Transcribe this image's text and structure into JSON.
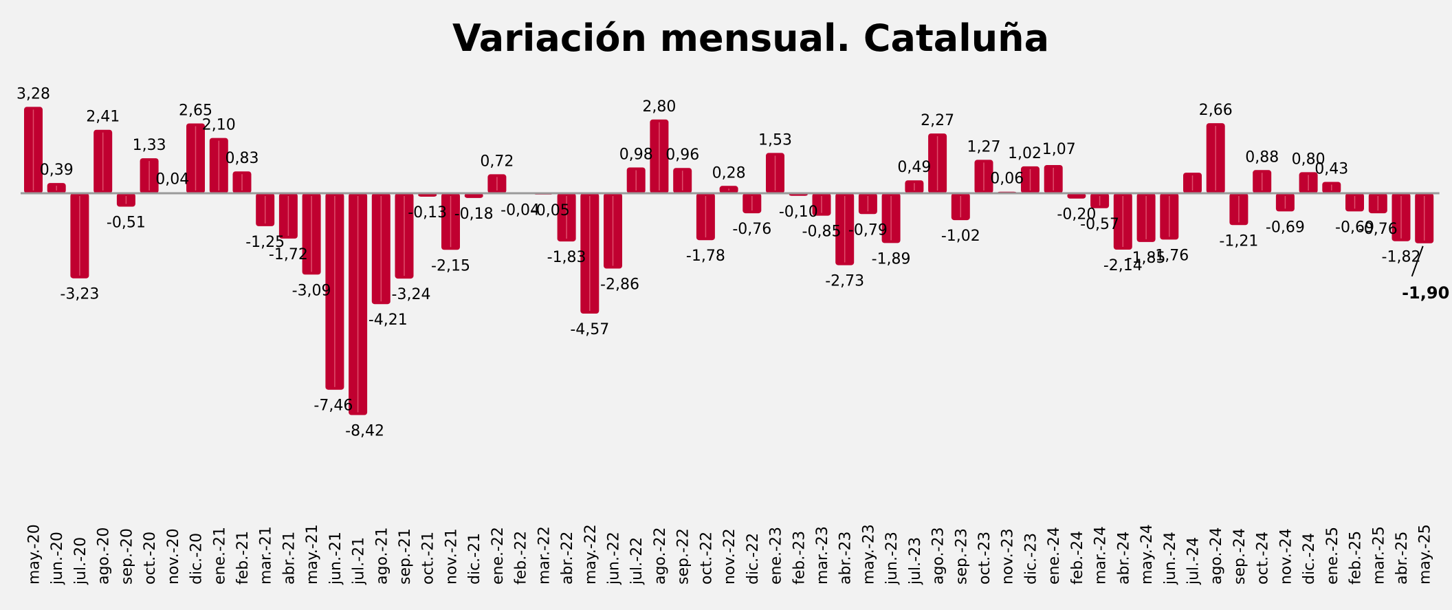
{
  "chart_data": {
    "type": "bar",
    "title": "Variación mensual. Cataluña",
    "xlabel": "",
    "ylabel": "",
    "ylim": [
      -9.5,
      4.0
    ],
    "grid": false,
    "legend": "none",
    "colors": {
      "bar": "#c00030",
      "bar_highlight": "#e6607a",
      "zero_line": "#9a9a9a",
      "background": "#f2f2f2"
    },
    "categories": [
      "may.-20",
      "jun.-20",
      "jul.-20",
      "ago.-20",
      "sep.-20",
      "oct.-20",
      "nov.-20",
      "dic.-20",
      "ene.-21",
      "feb.-21",
      "mar.-21",
      "abr.-21",
      "may.-21",
      "jun.-21",
      "jul.-21",
      "ago.-21",
      "sep.-21",
      "oct.-21",
      "nov.-21",
      "dic.-21",
      "ene.-22",
      "feb.-22",
      "mar.-22",
      "abr.-22",
      "may.-22",
      "jun.-22",
      "jul.-22",
      "ago.-22",
      "sep.-22",
      "oct.-22",
      "nov.-22",
      "dic.-22",
      "ene.-23",
      "feb.-23",
      "mar.-23",
      "abr.-23",
      "may.-23",
      "jun.-23",
      "jul.-23",
      "ago.-23",
      "sep.-23",
      "oct.-23",
      "nov.-23",
      "dic.-23",
      "ene.-24",
      "feb.-24",
      "mar.-24",
      "abr.-24",
      "may.-24",
      "jun.-24",
      "jul.-24",
      "ago.-24",
      "sep.-24",
      "oct.-24",
      "nov.-24",
      "dic.-24",
      "ene.-25",
      "feb.-25",
      "mar.-25",
      "abr.-25",
      "may.-25"
    ],
    "values": [
      3.28,
      0.39,
      -3.23,
      2.41,
      -0.51,
      1.33,
      0.04,
      2.65,
      2.1,
      0.83,
      -1.25,
      -1.72,
      -3.09,
      -7.46,
      -8.42,
      -4.21,
      -3.24,
      -0.13,
      -2.15,
      -0.18,
      0.72,
      -0.04,
      -0.05,
      -1.83,
      -4.57,
      -2.86,
      0.98,
      2.8,
      0.96,
      -1.78,
      0.28,
      -0.76,
      1.53,
      -0.1,
      -0.85,
      -2.73,
      -0.79,
      -1.89,
      0.49,
      2.27,
      -1.02,
      1.27,
      0.06,
      1.02,
      1.07,
      -0.2,
      -0.57,
      -2.14,
      -1.85,
      -1.76,
      0.78,
      2.66,
      -1.21,
      0.88,
      -0.69,
      0.8,
      0.43,
      -0.69,
      -0.76,
      -1.82,
      -1.9
    ],
    "data_labels": [
      "3,28",
      "0,39",
      "-3,23",
      "2,41",
      "-0,51",
      "1,33",
      "0,04",
      "2,65",
      "2,10",
      "0,83",
      "-1,25",
      "-1,72",
      "-3,09",
      "-7,46",
      "-8,42",
      "-4,21",
      "-3,24",
      "-0,13",
      "-2,15",
      "-0,18",
      "0,72",
      "-0,04",
      "-0,05",
      "-1,83",
      "-4,57",
      "-2,86",
      "0,98",
      "2,80",
      "0,96",
      "-1,78",
      "0,28",
      "-0,76",
      "1,53",
      "-0,10",
      "-0,85",
      "-2,73",
      "-0,79",
      "-1,89",
      "0,49",
      "2,27",
      "-1,02",
      "1,27",
      "0,06",
      "1,02",
      "1,07",
      "-0,20",
      "-0,57",
      "-2,14",
      "-1,85",
      "-1,76",
      "",
      "2,66",
      "-1,21",
      "0,88",
      "-0,69",
      "0,80",
      "0,43",
      "-0,69",
      "-0,76",
      "-1,82",
      "-1,90"
    ],
    "bold_labels": [
      "-1,90"
    ]
  }
}
